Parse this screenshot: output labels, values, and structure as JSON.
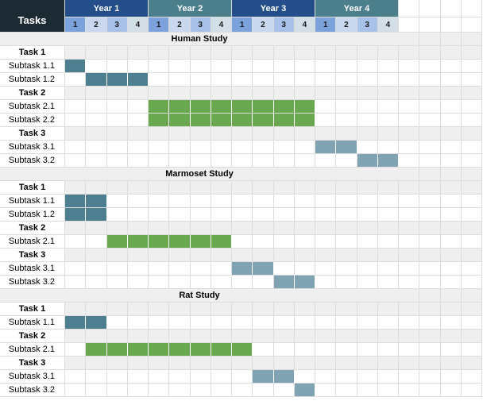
{
  "header": {
    "tasks_label": "Tasks",
    "years": [
      "Year 1",
      "Year 2",
      "Year 3",
      "Year 4"
    ],
    "quarters": [
      "1",
      "2",
      "3",
      "4"
    ]
  },
  "colors": {
    "tasks_header_bg": "#1c2a33",
    "year_header_bgs": [
      "#234e8a",
      "#4b7f8c",
      "#234e8a",
      "#4b7f8c"
    ],
    "quarter_bgs": [
      "#7ca2dc",
      "#c9d8ee",
      "#a7c1e8",
      "#d3dfe6"
    ],
    "task_row_bg": "#efefef",
    "bar_dark": "#4e7f91",
    "bar_green": "#6aa84f",
    "bar_light": "#7fa3b3"
  },
  "studies": [
    {
      "title": "Human Study",
      "tasks": [
        {
          "label": "Task 1",
          "subtasks": [
            {
              "label": "Subtask 1.1",
              "start": 1,
              "end": 1,
              "color": "dark"
            },
            {
              "label": "Subtask 1.2",
              "start": 2,
              "end": 4,
              "color": "dark"
            }
          ]
        },
        {
          "label": "Task 2",
          "subtasks": [
            {
              "label": "Subtask 2.1",
              "start": 5,
              "end": 12,
              "color": "green"
            },
            {
              "label": "Subtask 2.2",
              "start": 5,
              "end": 12,
              "color": "green"
            }
          ]
        },
        {
          "label": "Task 3",
          "subtasks": [
            {
              "label": "Subtask 3.1",
              "start": 13,
              "end": 14,
              "color": "light"
            },
            {
              "label": "Subtask 3.2",
              "start": 15,
              "end": 16,
              "color": "light"
            }
          ]
        }
      ]
    },
    {
      "title": "Marmoset Study",
      "tasks": [
        {
          "label": "Task 1",
          "subtasks": [
            {
              "label": "Subtask 1.1",
              "start": 1,
              "end": 2,
              "color": "dark"
            },
            {
              "label": "Subtask 1.2",
              "start": 1,
              "end": 2,
              "color": "dark"
            }
          ]
        },
        {
          "label": "Task 2",
          "subtasks": [
            {
              "label": "Subtask 2.1",
              "start": 3,
              "end": 8,
              "color": "green"
            }
          ]
        },
        {
          "label": "Task 3",
          "subtasks": [
            {
              "label": "Subtask 3.1",
              "start": 9,
              "end": 10,
              "color": "light"
            },
            {
              "label": "Subtask 3.2",
              "start": 11,
              "end": 12,
              "color": "light"
            }
          ]
        }
      ]
    },
    {
      "title": "Rat Study",
      "tasks": [
        {
          "label": "Task 1",
          "subtasks": [
            {
              "label": "Subtask 1.1",
              "start": 1,
              "end": 2,
              "color": "dark"
            }
          ]
        },
        {
          "label": "Task 2",
          "subtasks": [
            {
              "label": "Subtask 2.1",
              "start": 2,
              "end": 9,
              "color": "green"
            }
          ]
        },
        {
          "label": "Task 3",
          "subtasks": [
            {
              "label": "Subtask 3.1",
              "start": 10,
              "end": 11,
              "color": "light"
            },
            {
              "label": "Subtask 3.2",
              "start": 12,
              "end": 12,
              "color": "light"
            }
          ]
        }
      ]
    }
  ]
}
